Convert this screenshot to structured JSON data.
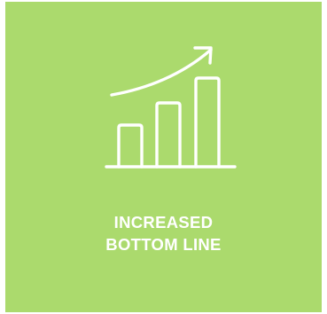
{
  "tile": {
    "background": "#abda6d",
    "foreground": "#ffffff",
    "icon": "bar-chart-growth-icon",
    "caption_line1": "INCREASED",
    "caption_line2": "BOTTOM LINE"
  }
}
